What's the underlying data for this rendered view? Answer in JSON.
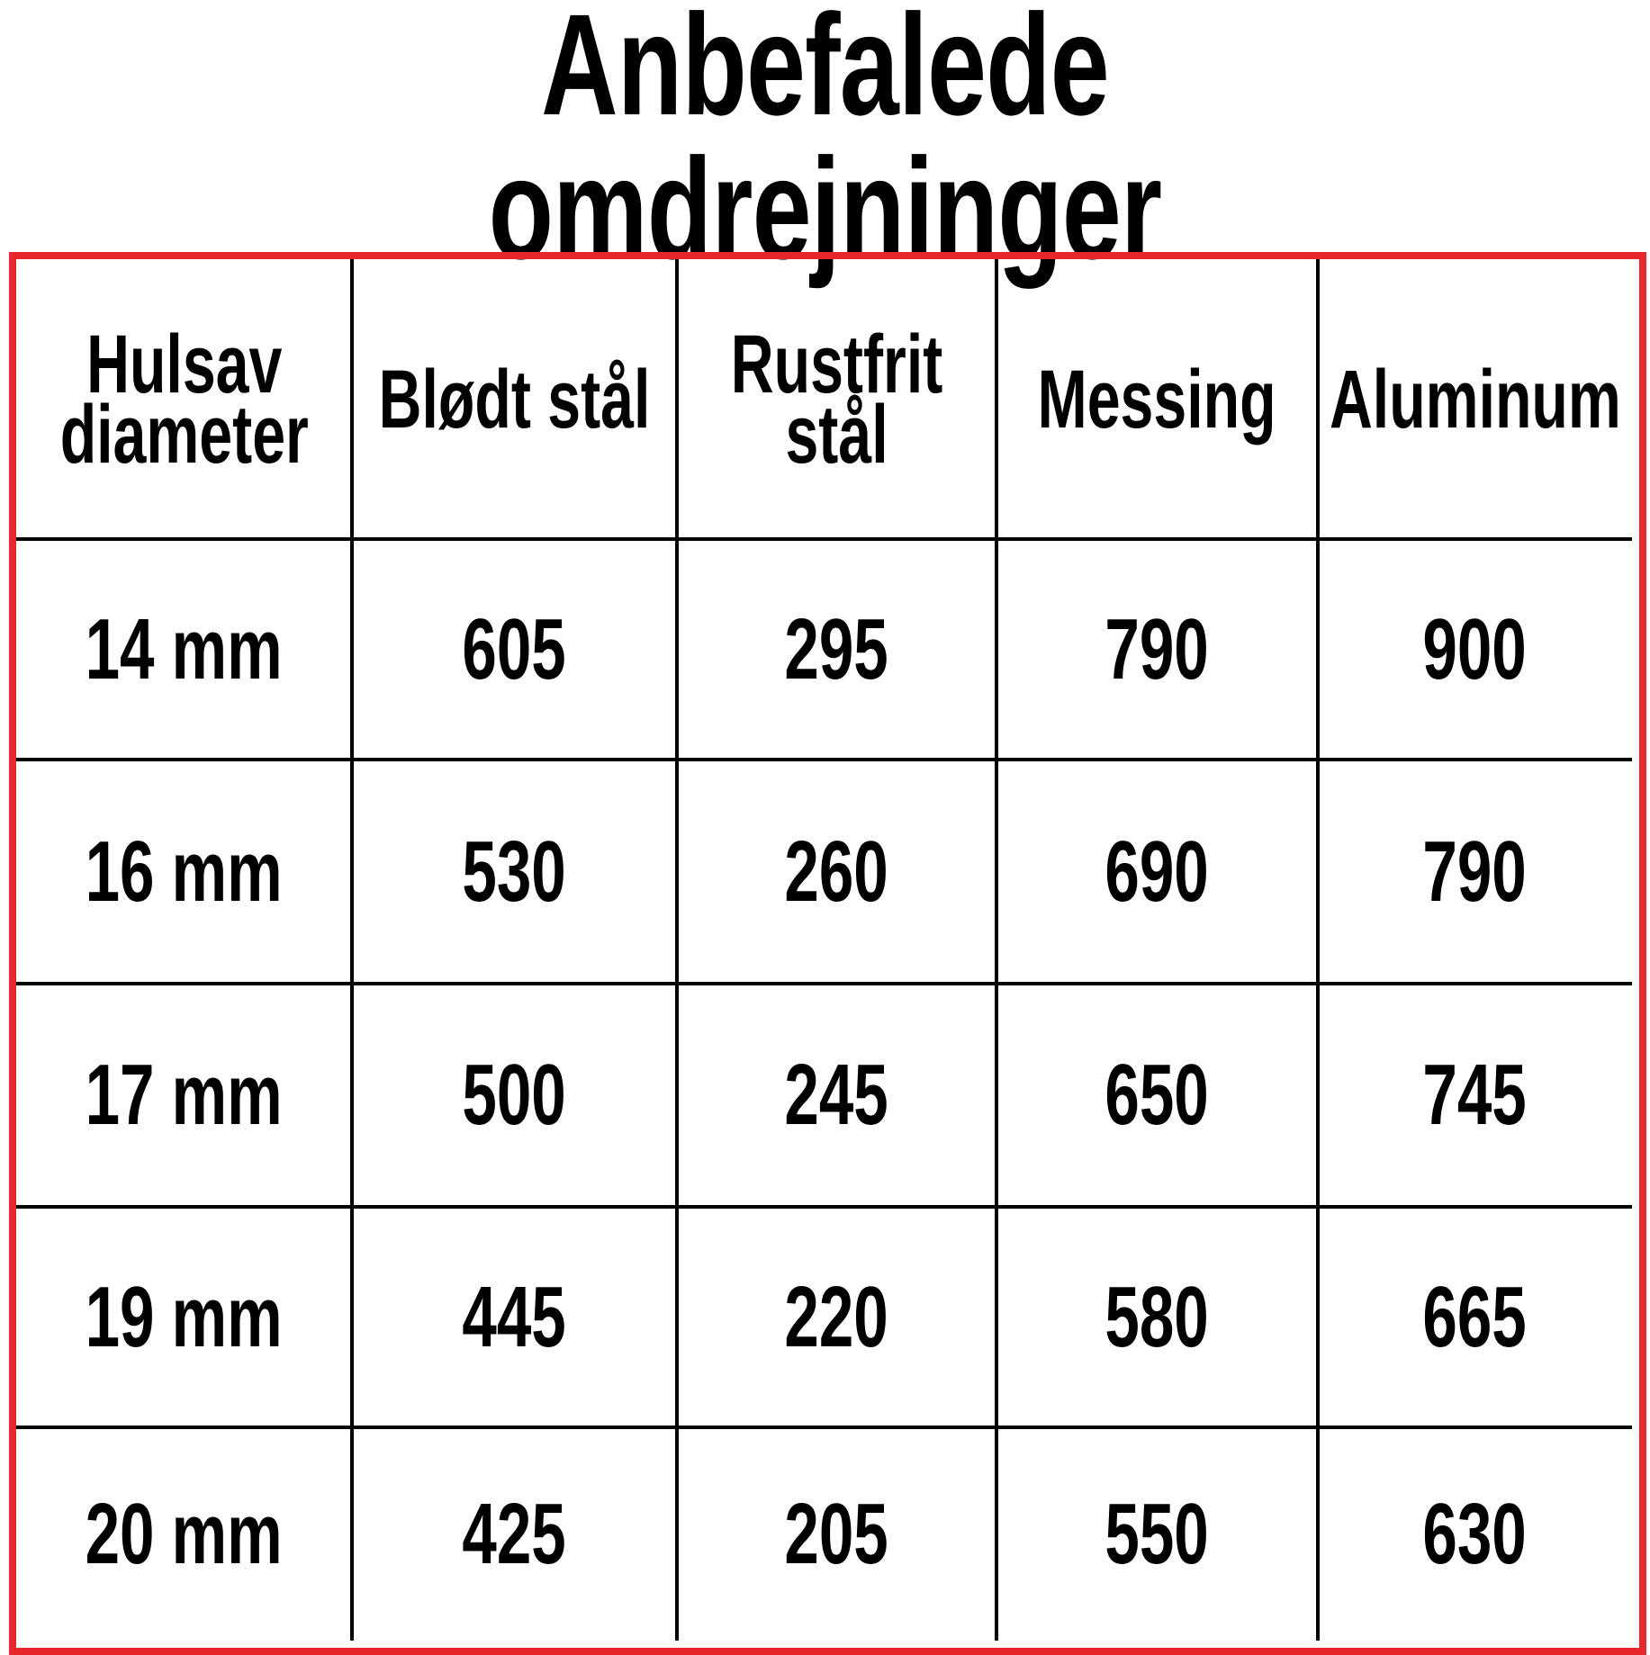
{
  "title": "Anbefalede omdrejninger",
  "colors": {
    "border": "#e8262d",
    "text": "#000000"
  },
  "table": {
    "headers": [
      "Hulsav\ndiameter",
      "Blødt stål",
      "Rustfrit\nstål",
      "Messing",
      "Aluminum"
    ],
    "rows": [
      [
        "14 mm",
        "605",
        "295",
        "790",
        "900"
      ],
      [
        "16 mm",
        "530",
        "260",
        "690",
        "790"
      ],
      [
        "17 mm",
        "500",
        "245",
        "650",
        "745"
      ],
      [
        "19 mm",
        "445",
        "220",
        "580",
        "665"
      ],
      [
        "20 mm",
        "425",
        "205",
        "550",
        "630"
      ]
    ]
  }
}
